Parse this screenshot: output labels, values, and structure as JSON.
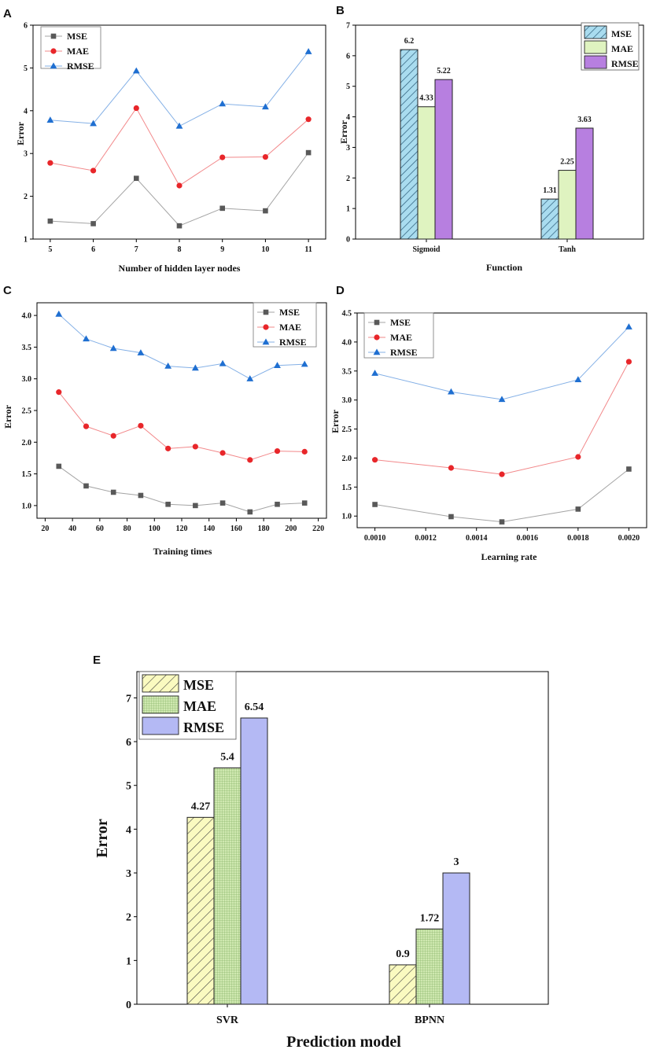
{
  "colors": {
    "mse_line": "#595959",
    "mae_line": "#e8262a",
    "rmse_line": "#1f6fd1",
    "bar_mse_b": "#a9dcef",
    "bar_mae_b": "#dff3c0",
    "bar_rmse_b": "#b77fe0",
    "bar_mse_e": "#fafac0",
    "bar_mae_e": "#cfe8b0",
    "bar_rmse_e": "#b4b9f4"
  },
  "chart_data": [
    {
      "id": "A",
      "type": "line",
      "panel_label": "A",
      "xlabel": "Number of hidden layer nodes",
      "ylabel": "Error",
      "x": [
        5,
        6,
        7,
        8,
        9,
        10,
        11
      ],
      "xticks": [
        "5",
        "6",
        "7",
        "8",
        "9",
        "10",
        "11"
      ],
      "xlim": [
        4.6,
        11.4
      ],
      "ylim": [
        1,
        6
      ],
      "yticks": [
        "1",
        "2",
        "3",
        "4",
        "5",
        "6"
      ],
      "legend_position": "top-left",
      "series": [
        {
          "name": "MSE",
          "marker": "square",
          "values": [
            1.42,
            1.36,
            2.42,
            1.31,
            1.72,
            1.66,
            3.02
          ]
        },
        {
          "name": "MAE",
          "marker": "circle",
          "values": [
            2.78,
            2.6,
            4.06,
            2.25,
            2.91,
            2.92,
            3.8
          ]
        },
        {
          "name": "RMSE",
          "marker": "triangle",
          "values": [
            3.78,
            3.7,
            4.93,
            3.64,
            4.16,
            4.09,
            5.38
          ]
        }
      ]
    },
    {
      "id": "B",
      "type": "bar",
      "panel_label": "B",
      "xlabel": "Function",
      "ylabel": "Error",
      "categories": [
        "Sigmoid",
        "Tanh"
      ],
      "ylim": [
        0,
        7
      ],
      "yticks": [
        "0",
        "1",
        "2",
        "3",
        "4",
        "5",
        "6",
        "7"
      ],
      "legend_position": "top-right",
      "series": [
        {
          "name": "MSE",
          "values": [
            6.2,
            1.31
          ],
          "labels": [
            "6.2",
            "1.31"
          ]
        },
        {
          "name": "MAE",
          "values": [
            4.33,
            2.25
          ],
          "labels": [
            "4.33",
            "2.25"
          ]
        },
        {
          "name": "RMSE",
          "values": [
            5.22,
            3.63
          ],
          "labels": [
            "5.22",
            "3.63"
          ]
        }
      ]
    },
    {
      "id": "C",
      "type": "line",
      "panel_label": "C",
      "xlabel": "Training times",
      "ylabel": "Error",
      "x": [
        30,
        50,
        70,
        90,
        110,
        130,
        150,
        170,
        190,
        210
      ],
      "xticks": [
        "20",
        "40",
        "60",
        "80",
        "100",
        "120",
        "140",
        "160",
        "180",
        "200",
        "220"
      ],
      "xtick_values": [
        20,
        40,
        60,
        80,
        100,
        120,
        140,
        160,
        180,
        200,
        220
      ],
      "xlim": [
        14,
        226
      ],
      "ylim": [
        0.8,
        4.2
      ],
      "yticks": [
        "1.0",
        "1.5",
        "2.0",
        "2.5",
        "3.0",
        "3.5",
        "4.0"
      ],
      "ytick_values": [
        1.0,
        1.5,
        2.0,
        2.5,
        3.0,
        3.5,
        4.0
      ],
      "legend_position": "top-right",
      "series": [
        {
          "name": "MSE",
          "marker": "square",
          "values": [
            1.62,
            1.31,
            1.21,
            1.16,
            1.02,
            1.0,
            1.04,
            0.9,
            1.02,
            1.04
          ]
        },
        {
          "name": "MAE",
          "marker": "circle",
          "values": [
            2.79,
            2.25,
            2.1,
            2.26,
            1.9,
            1.93,
            1.83,
            1.72,
            1.86,
            1.85
          ]
        },
        {
          "name": "RMSE",
          "marker": "triangle",
          "values": [
            4.02,
            3.63,
            3.48,
            3.41,
            3.2,
            3.17,
            3.24,
            3.0,
            3.21,
            3.23
          ]
        }
      ]
    },
    {
      "id": "D",
      "type": "line",
      "panel_label": "D",
      "xlabel": "Learning rate",
      "ylabel": "Error",
      "x": [
        0.001,
        0.0013,
        0.0015,
        0.0018,
        0.002
      ],
      "xticks": [
        "0.0010",
        "0.0012",
        "0.0014",
        "0.0016",
        "0.0018",
        "0.0020"
      ],
      "xtick_values": [
        0.001,
        0.0012,
        0.0014,
        0.0016,
        0.0018,
        0.002
      ],
      "xlim": [
        0.00093,
        0.00207
      ],
      "ylim": [
        0.8,
        4.5
      ],
      "yticks": [
        "1.0",
        "1.5",
        "2.0",
        "2.5",
        "3.0",
        "3.5",
        "4.0",
        "4.5"
      ],
      "ytick_values": [
        1.0,
        1.5,
        2.0,
        2.5,
        3.0,
        3.5,
        4.0,
        4.5
      ],
      "legend_position": "top-left",
      "series": [
        {
          "name": "MSE",
          "marker": "square",
          "values": [
            1.2,
            0.99,
            0.9,
            1.12,
            1.81
          ]
        },
        {
          "name": "MAE",
          "marker": "circle",
          "values": [
            1.97,
            1.83,
            1.72,
            2.02,
            3.66
          ]
        },
        {
          "name": "RMSE",
          "marker": "triangle",
          "values": [
            3.46,
            3.14,
            3.01,
            3.35,
            4.26
          ]
        }
      ]
    },
    {
      "id": "E",
      "type": "bar",
      "panel_label": "E",
      "xlabel": "Prediction model",
      "ylabel": "Error",
      "categories": [
        "SVR",
        "BPNN"
      ],
      "ylim": [
        0,
        7.6
      ],
      "yticks": [
        "0",
        "1",
        "2",
        "3",
        "4",
        "5",
        "6",
        "7"
      ],
      "legend_position": "top-left",
      "series": [
        {
          "name": "MSE",
          "values": [
            4.27,
            0.9
          ],
          "labels": [
            "4.27",
            "0.9"
          ]
        },
        {
          "name": "MAE",
          "values": [
            5.4,
            1.72
          ],
          "labels": [
            "5.4",
            "1.72"
          ]
        },
        {
          "name": "RMSE",
          "values": [
            6.54,
            3
          ],
          "labels": [
            "6.54",
            "3"
          ]
        }
      ]
    }
  ]
}
